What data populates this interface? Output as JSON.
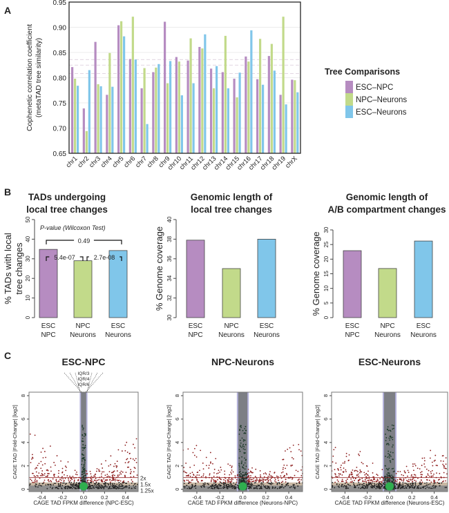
{
  "colors": {
    "esc_npc": "#b68cc1",
    "npc_neurons": "#c2da8a",
    "esc_neurons": "#80c6ea",
    "red_points": "#8b1a1a",
    "dark_points": "#222222",
    "green_core": "#2fae4f"
  },
  "panel_labels": [
    "A",
    "B",
    "C"
  ],
  "chart_data": [
    {
      "type": "bar",
      "panel": "A",
      "ylabel_lines": [
        "Cophenetic correlation coefficient",
        "(metaTAD tree similarity)"
      ],
      "ylim": [
        0.65,
        0.95
      ],
      "yticks": [
        "0.65",
        "0.70",
        "0.75",
        "0.80",
        "0.85",
        "0.90",
        "0.95"
      ],
      "grid": true,
      "categories": [
        "chr1",
        "chr2",
        "chr3",
        "chr4",
        "chr5",
        "chr6",
        "chr7",
        "chr8",
        "chr9",
        "chr10",
        "chr11",
        "chr12",
        "chr13",
        "chr14",
        "chr15",
        "chr16",
        "chr17",
        "chr18",
        "chr19",
        "chrX"
      ],
      "series": [
        {
          "name": "ESC–NPC",
          "values": [
            0.821,
            0.739,
            0.871,
            0.766,
            0.904,
            0.837,
            0.779,
            0.811,
            0.911,
            0.841,
            0.834,
            0.861,
            0.818,
            0.811,
            0.798,
            0.842,
            0.797,
            0.843,
            0.766,
            0.796
          ]
        },
        {
          "name": "NPC–Neurons",
          "values": [
            0.798,
            0.694,
            0.787,
            0.849,
            0.912,
            0.921,
            0.819,
            0.82,
            0.789,
            0.832,
            0.878,
            0.858,
            0.779,
            0.883,
            0.761,
            0.832,
            0.877,
            0.867,
            0.921,
            0.795
          ]
        },
        {
          "name": "ESC–Neurons",
          "values": [
            0.784,
            0.815,
            0.783,
            0.782,
            0.882,
            0.836,
            0.708,
            0.827,
            0.833,
            0.765,
            0.789,
            0.886,
            0.823,
            0.779,
            0.81,
            0.894,
            0.786,
            0.814,
            0.747,
            0.771
          ]
        }
      ],
      "dashed_reference_lines": [
        0.836,
        0.825,
        0.808
      ],
      "legend": {
        "title": "Tree Comparisons",
        "placement": "right"
      }
    },
    {
      "type": "bar",
      "panel": "B",
      "title_lines": [
        "TADs undergoing",
        "local tree changes"
      ],
      "ylabel_lines": [
        "% TADs with local",
        "tree changes"
      ],
      "ylim": [
        0,
        50
      ],
      "yticks": [
        "0",
        "10",
        "20",
        "30",
        "40",
        "50"
      ],
      "categories": [
        [
          "ESC",
          "NPC"
        ],
        [
          "NPC",
          "Neurons"
        ],
        [
          "ESC",
          "Neurons"
        ]
      ],
      "values": [
        34.8,
        29.0,
        34.2
      ],
      "annotation_title": "P-value (Wilcoxon Test)",
      "pvalues": [
        "0.49",
        "5.4e-07",
        "2.7e-08"
      ]
    },
    {
      "type": "bar",
      "panel": "B",
      "title_lines": [
        "Genomic length of",
        "local tree changes"
      ],
      "ylabel_lines": [
        "% Genome coverage"
      ],
      "ylim": [
        30,
        40
      ],
      "yticks": [
        "30",
        "32",
        "34",
        "36",
        "38",
        "40"
      ],
      "categories": [
        [
          "ESC",
          "NPC"
        ],
        [
          "NPC",
          "Neurons"
        ],
        [
          "ESC",
          "Neurons"
        ]
      ],
      "values": [
        37.9,
        35.0,
        38.0
      ]
    },
    {
      "type": "bar",
      "panel": "B",
      "title_lines": [
        "Genomic length of",
        "A/B compartment changes"
      ],
      "ylabel_lines": [
        "% Genome coverage"
      ],
      "ylim": [
        0,
        30
      ],
      "yticks": [
        "0",
        "5",
        "10",
        "15",
        "20",
        "25",
        "30"
      ],
      "categories": [
        [
          "ESC",
          "NPC"
        ],
        [
          "NPC",
          "Neurons"
        ],
        [
          "ESC",
          "Neurons"
        ]
      ],
      "values": [
        22.9,
        16.8,
        26.2
      ]
    },
    {
      "type": "scatter",
      "panel": "C",
      "title": "ESC-NPC",
      "xlabel": "CAGE TAD FPKM difference (NPC-ESC)",
      "ylabel": "CAGE TAD |Fold-Change| [log2]",
      "xlim": [
        -0.52,
        0.52
      ],
      "ylim": [
        -0.2,
        8.3
      ],
      "xticks": [
        "-0.4",
        "-0.2",
        "0.0",
        "0.2",
        "0.4"
      ],
      "yticks": [
        "0",
        "2",
        "4",
        "6",
        "8"
      ],
      "iqr_labels": [
        "IQR/3",
        "IQR/4",
        "IQR/6"
      ],
      "threshold_labels": [
        "2x",
        "1.5x",
        "1.25x"
      ],
      "band_halfwidth": 0.025
    },
    {
      "type": "scatter",
      "panel": "C",
      "title": "NPC-Neurons",
      "xlabel": "CAGE TAD FPKM difference (Neurons-NPC)",
      "ylabel": "CAGE TAD |Fold-Change| [log2]",
      "xlim": [
        -0.52,
        0.52
      ],
      "ylim": [
        -0.2,
        8.3
      ],
      "xticks": [
        "-0.4",
        "-0.2",
        "0.0",
        "0.2",
        "0.4"
      ],
      "yticks": [
        "0",
        "2",
        "4",
        "6",
        "8"
      ],
      "band_halfwidth": 0.04
    },
    {
      "type": "scatter",
      "panel": "C",
      "title": "ESC-Neurons",
      "xlabel": "CAGE TAD FPKM difference (Neurons-ESC)",
      "ylabel": "CAGE TAD |Fold-Change| [log2]",
      "xlim": [
        -0.52,
        0.52
      ],
      "ylim": [
        -0.2,
        8.3
      ],
      "xticks": [
        "-0.4",
        "-0.2",
        "0.0",
        "0.2",
        "0.4"
      ],
      "yticks": [
        "0",
        "2",
        "4",
        "6",
        "8"
      ],
      "band_halfwidth": 0.05
    }
  ]
}
